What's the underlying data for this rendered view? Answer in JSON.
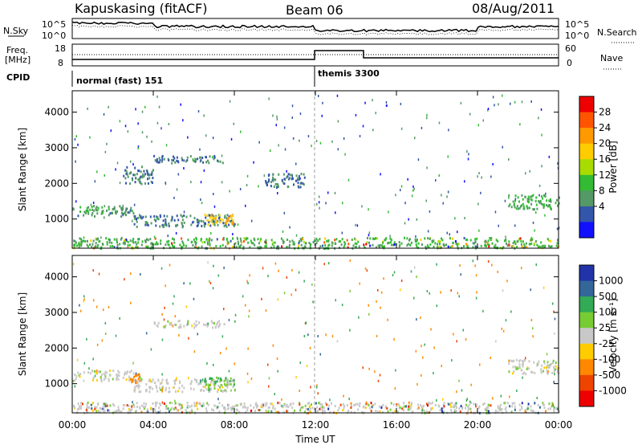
{
  "header": {
    "station": "Kapuskasing (fitACF)",
    "beam": "Beam 06",
    "date": "08/Aug/2011"
  },
  "status_panels": {
    "nsky_label": "N.Sky",
    "nsearch_label": "N.Search",
    "noise_ticks": [
      "10^5",
      "10^0"
    ],
    "freq_label_1": "Freq.",
    "freq_label_2": "[MHz]",
    "freq_ticks": [
      "18",
      "8"
    ],
    "nave_label": "Nave",
    "nave_ticks": [
      "60",
      "0"
    ],
    "cpid_label": "CPID",
    "cpid_entries": [
      {
        "name": "normal (fast) 151",
        "start_hour": 0
      },
      {
        "name": "themis 3300",
        "start_hour": 12
      }
    ]
  },
  "power_colorbar": {
    "label": "Power [dB]",
    "ticks": [
      "28",
      "24",
      "20",
      "16",
      "12",
      "8",
      "4"
    ],
    "colors": [
      "#ee0000",
      "#ff5500",
      "#ff9900",
      "#ffcc00",
      "#a8dc00",
      "#33bb33",
      "#559966",
      "#3355aa",
      "#1111ff"
    ]
  },
  "velocity_colorbar": {
    "label": "Velocity [m s⁻¹]",
    "ticks": [
      "1000",
      "500",
      "100",
      "25",
      "-25",
      "-100",
      "-500",
      "-1000"
    ],
    "colors": [
      "#2233aa",
      "#336699",
      "#33aa55",
      "#77cc33",
      "#c8c8c8",
      "#ffcc00",
      "#ff8800",
      "#ee4400",
      "#ee0000"
    ]
  },
  "chart_data": [
    {
      "type": "heatmap",
      "panel": "power",
      "xlabel": "",
      "ylabel": "Slant Range [km]",
      "xlim": [
        0,
        24
      ],
      "ylim": [
        180,
        4600
      ],
      "yticks": [
        "1000",
        "2000",
        "3000",
        "4000"
      ],
      "xticks": [
        "00:00",
        "04:00",
        "08:00",
        "12:00",
        "16:00",
        "20:00",
        "00:00"
      ],
      "colorbar_range_dB": [
        0,
        30
      ],
      "echo_regions": [
        {
          "t": [
            0.0,
            3.0
          ],
          "r": [
            1100,
            1400
          ],
          "level": 8
        },
        {
          "t": [
            3.0,
            8.0
          ],
          "r": [
            800,
            1150
          ],
          "level": 6
        },
        {
          "t": [
            6.5,
            8.0
          ],
          "r": [
            850,
            1150
          ],
          "level": 20
        },
        {
          "t": [
            4.0,
            7.5
          ],
          "r": [
            2600,
            2800
          ],
          "level": 6
        },
        {
          "t": [
            2.5,
            4.0
          ],
          "r": [
            2000,
            2500
          ],
          "level": 6
        },
        {
          "t": [
            9.5,
            11.5
          ],
          "r": [
            1900,
            2300
          ],
          "level": 6
        },
        {
          "t": [
            21.5,
            24.0
          ],
          "r": [
            1300,
            1700
          ],
          "level": 10
        },
        {
          "t": [
            0.0,
            24.0
          ],
          "r": [
            200,
            500
          ],
          "level": 10
        }
      ]
    },
    {
      "type": "heatmap",
      "panel": "velocity",
      "xlabel": "Time UT",
      "ylabel": "Slant Range [km]",
      "xlim": [
        0,
        24
      ],
      "ylim": [
        180,
        4600
      ],
      "yticks": [
        "1000",
        "2000",
        "3000",
        "4000"
      ],
      "xticks": [
        "00:00",
        "04:00",
        "08:00",
        "12:00",
        "16:00",
        "20:00",
        "00:00"
      ],
      "colorbar_range_mps": [
        -1000,
        1000
      ],
      "echo_regions": [
        {
          "t": [
            0.0,
            3.0
          ],
          "r": [
            1100,
            1400
          ],
          "v": 0
        },
        {
          "t": [
            2.8,
            3.3
          ],
          "r": [
            1000,
            1300
          ],
          "v": -300
        },
        {
          "t": [
            3.0,
            8.0
          ],
          "r": [
            800,
            1150
          ],
          "v": 0
        },
        {
          "t": [
            6.5,
            8.0
          ],
          "r": [
            850,
            1200
          ],
          "v": 100
        },
        {
          "t": [
            4.0,
            7.5
          ],
          "r": [
            2600,
            2800
          ],
          "v": 0
        },
        {
          "t": [
            21.5,
            24.0
          ],
          "r": [
            1300,
            1700
          ],
          "v": 0
        },
        {
          "t": [
            0.0,
            24.0
          ],
          "r": [
            200,
            500
          ],
          "v": 0
        }
      ]
    }
  ]
}
